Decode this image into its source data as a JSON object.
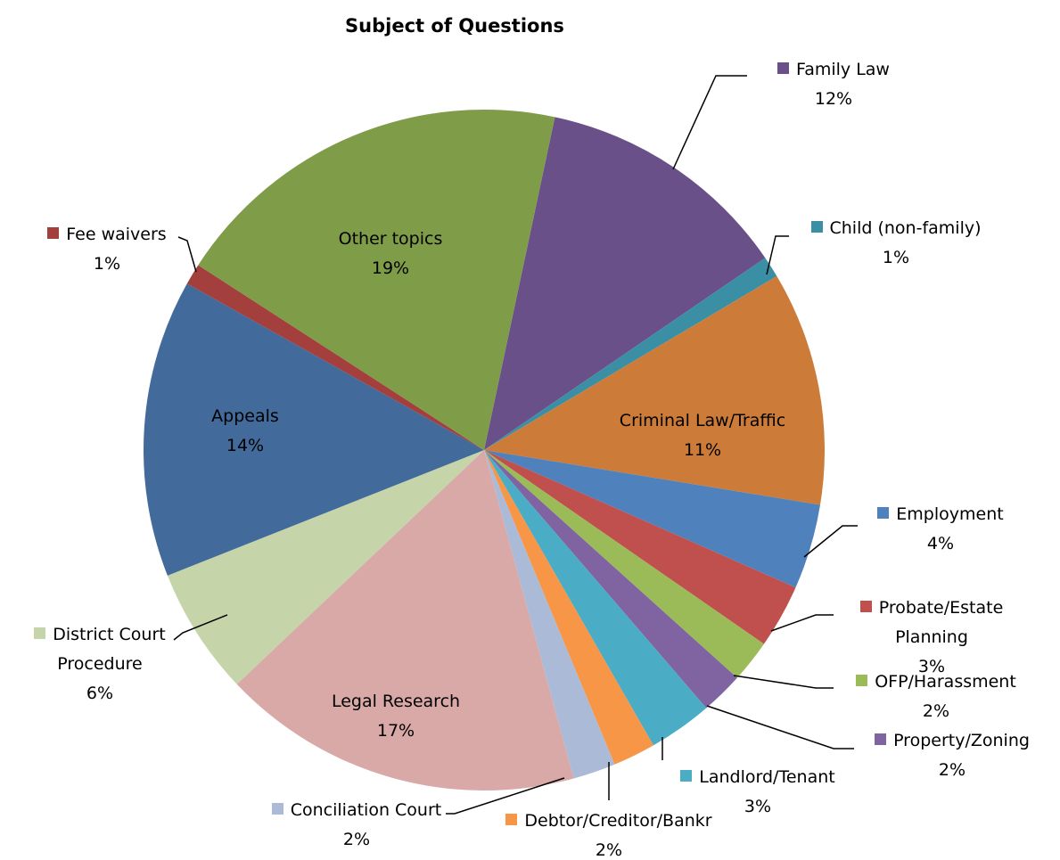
{
  "chart_data": {
    "type": "pie",
    "title": "Subject of Questions",
    "categories": [
      "Family Law",
      "Child (non-family)",
      "Criminal Law/Traffic",
      "Employment",
      "Probate/Estate Planning",
      "OFP/Harassment",
      "Property/Zoning",
      "Landlord/Tenant",
      "Debtor/Creditor/Bankr",
      "Conciliation Court",
      "Legal Research",
      "District Court Procedure",
      "Appeals",
      "Fee waivers",
      "Other topics"
    ],
    "values": [
      12,
      1,
      11,
      4,
      3,
      2,
      2,
      3,
      2,
      2,
      17,
      6,
      14,
      1,
      19
    ],
    "value_labels": [
      "12%",
      "1%",
      "11%",
      "4%",
      "3%",
      "2%",
      "2%",
      "3%",
      "2%",
      "2%",
      "17%",
      "6%",
      "14%",
      "1%",
      "19%"
    ],
    "colors": [
      "#6a5088",
      "#3a8fa5",
      "#cd7b39",
      "#4f81bd",
      "#c0504d",
      "#9bbb59",
      "#8064a2",
      "#4bacc6",
      "#f79646",
      "#aabad7",
      "#d9a9a8",
      "#c5d5a9",
      "#426a9a",
      "#a33f3d",
      "#7f9c48"
    ]
  }
}
